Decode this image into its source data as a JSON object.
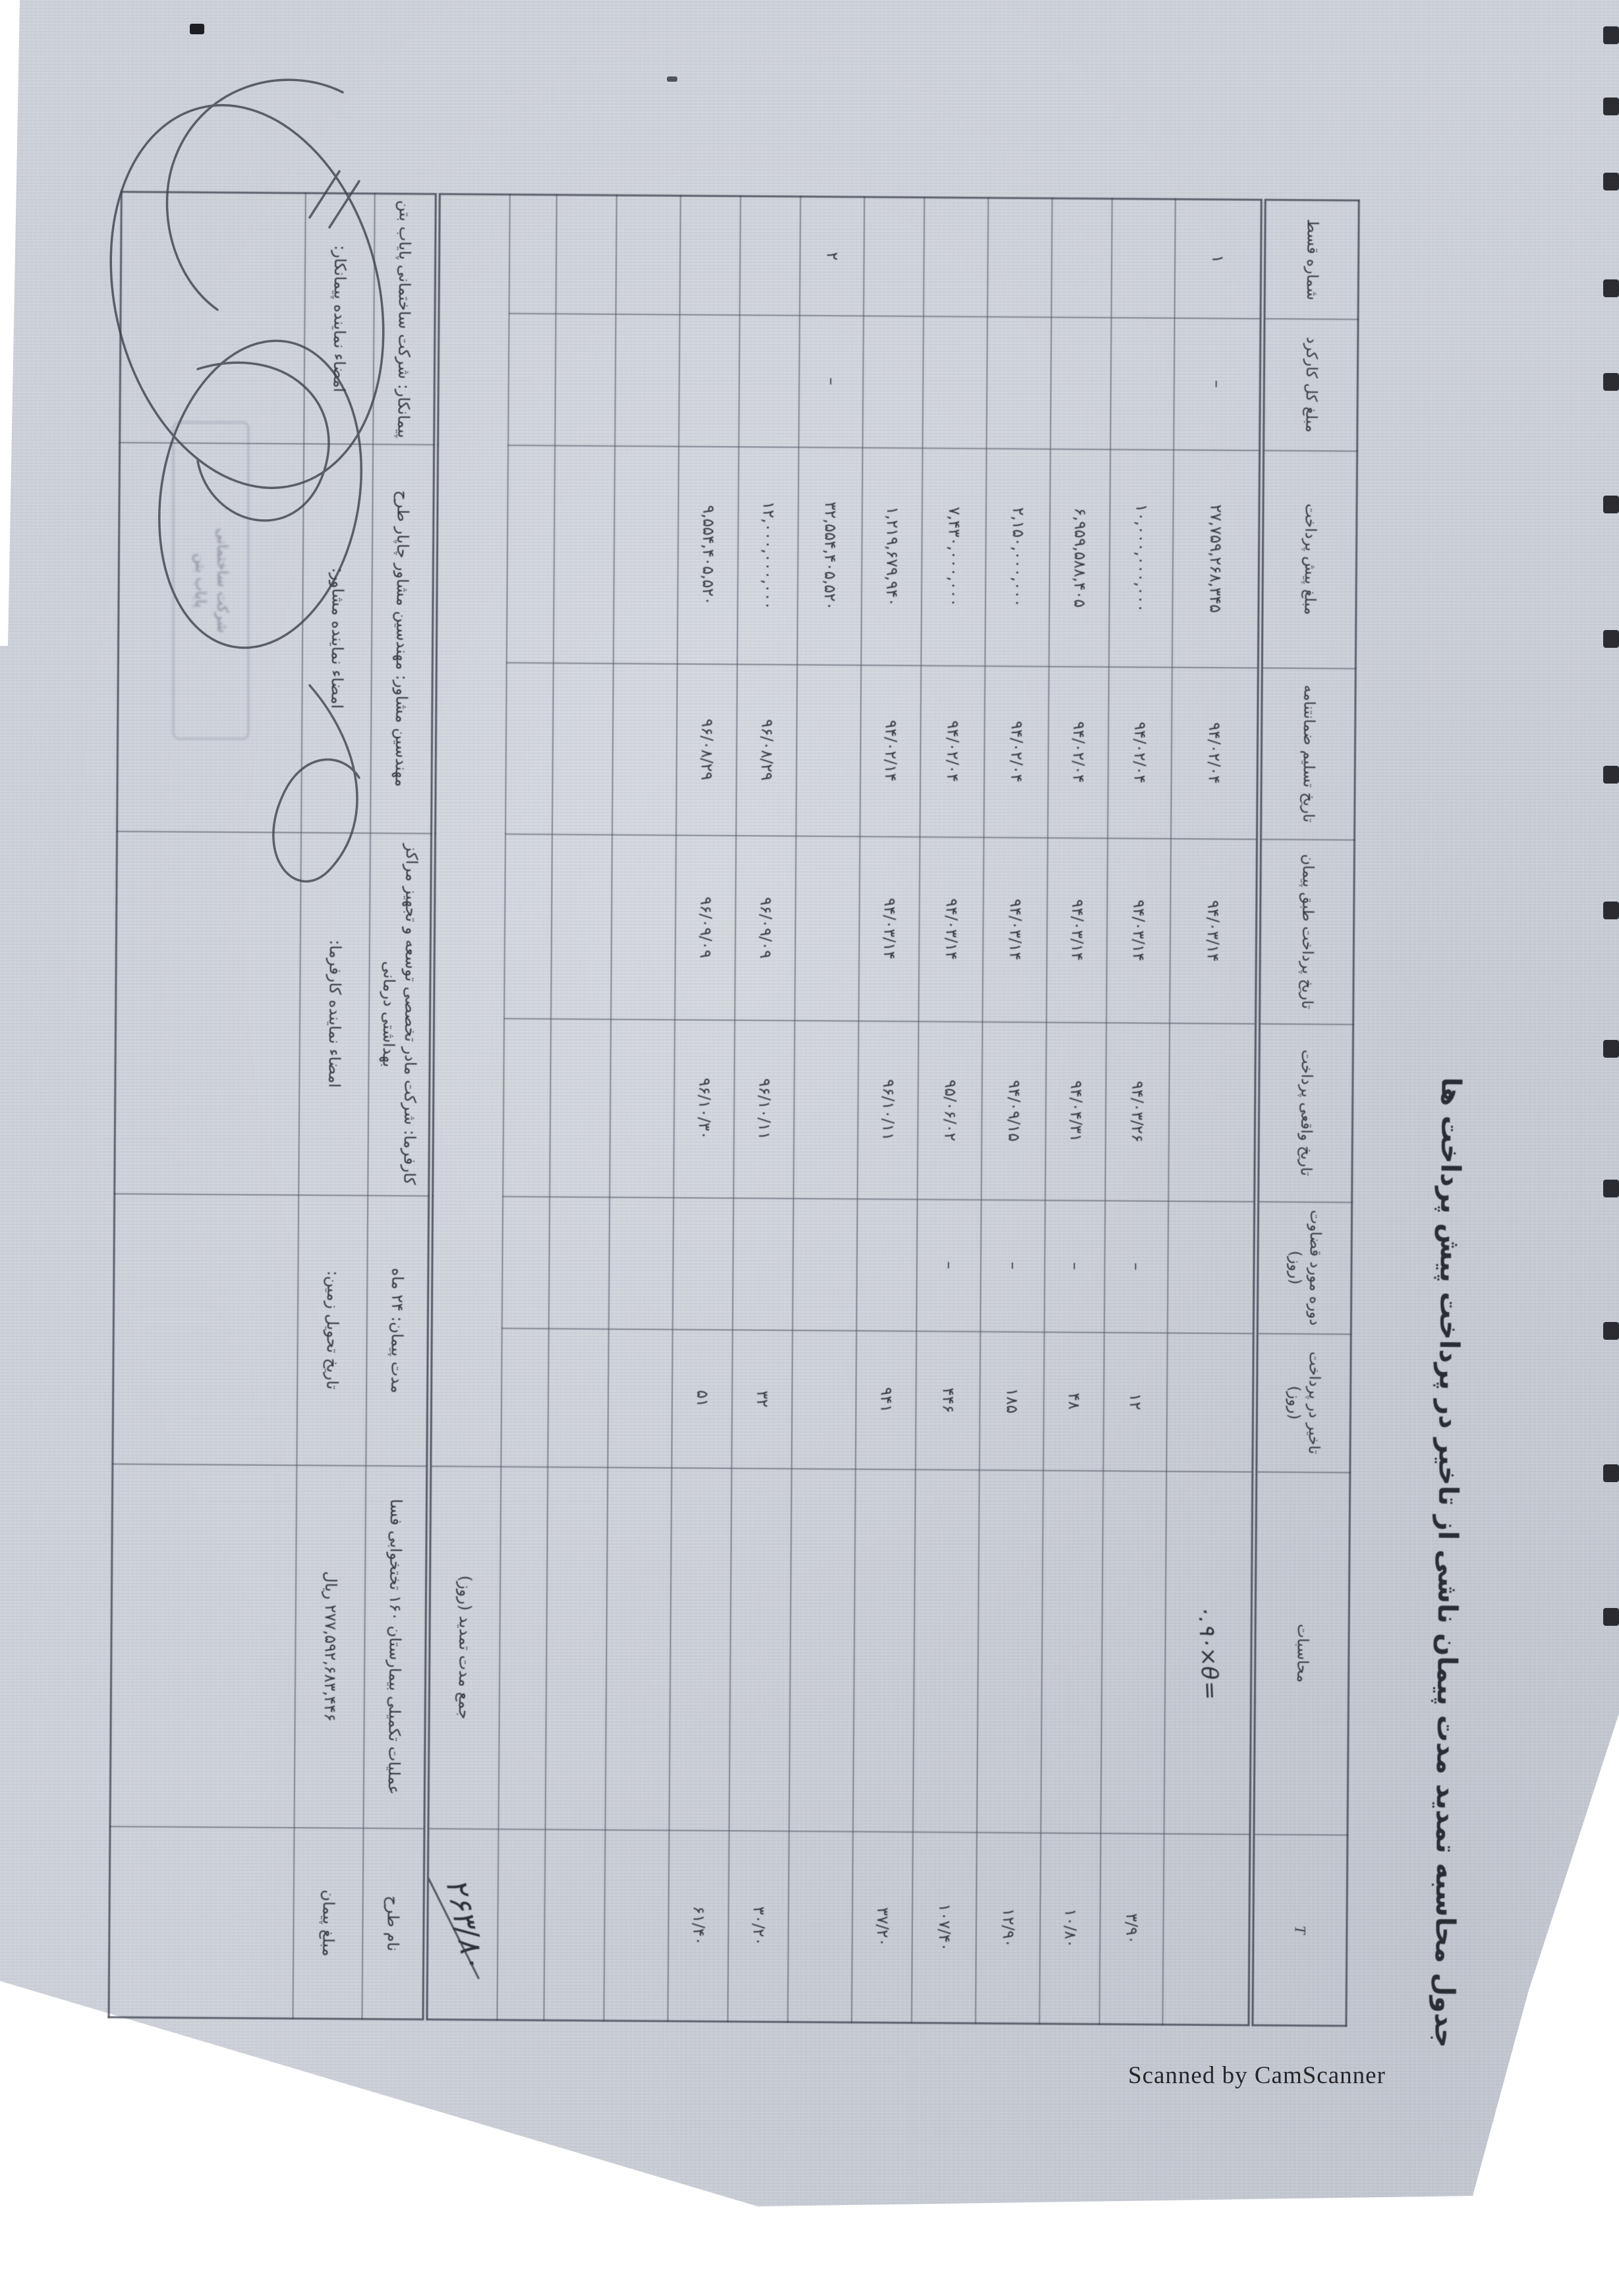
{
  "page": {
    "scanned_by": "Scanned by CamScanner"
  },
  "document": {
    "title": "جدول محاسبه تمدید مدت پیمان ناشی از تاخیر در پرداخت پیش پرداخت ها",
    "table": {
      "headers": [
        "شماره قسط",
        "مبلغ کل کارکرد",
        "مبلغ پیش پرداخت",
        "تاریخ تسلیم ضمانتنامه",
        "تاریخ پرداخت طبق پیمان",
        "تاریخ واقعی پرداخت",
        "دوره مورد قضاوت (روز)",
        "تاخیر در پرداخت (روز)",
        "محاسبات",
        "T"
      ],
      "rows": [
        [
          "۱",
          "–",
          "۲۷,۷۵۹,۲۶۸,۳۴۵",
          "۹۴/۰۲/۰۴",
          "۹۴/۰۳/۱۴",
          "",
          "",
          "",
          "۰.۹۰×θ=",
          ""
        ],
        [
          "",
          "",
          "۱۰,۰۰۰,۰۰۰,۰۰۰",
          "۹۴/۰۲/۰۴",
          "۹۴/۰۳/۱۴",
          "۹۴/۰۳/۲۶",
          "–",
          "۱۲",
          "",
          "۳/۹۰"
        ],
        [
          "",
          "",
          "۶,۹۵۹,۵۸۸,۴۰۵",
          "۹۴/۰۲/۰۴",
          "۹۴/۰۳/۱۴",
          "۹۴/۰۴/۳۱",
          "–",
          "۴۸",
          "",
          "۱۰/۸۰"
        ],
        [
          "",
          "",
          "۲,۱۵۰,۰۰۰,۰۰۰",
          "۹۴/۰۲/۰۴",
          "۹۴/۰۳/۱۴",
          "۹۴/۰۹/۱۵",
          "–",
          "۱۸۵",
          "",
          "۱۲/۹۰"
        ],
        [
          "",
          "",
          "۷,۴۳۰,۰۰۰,۰۰۰",
          "۹۴/۰۲/۰۴",
          "۹۴/۰۳/۱۴",
          "۹۵/۰۶/۰۲",
          "–",
          "۴۴۶",
          "",
          "۱۰۷/۴۰"
        ],
        [
          "",
          "",
          "۱,۲۱۹,۶۷۹,۹۴۰",
          "۹۴/۰۲/۱۴",
          "۹۴/۰۳/۱۴",
          "۹۶/۱۰/۱۱",
          "",
          "۹۴۱",
          "",
          "۳۷/۲۰"
        ],
        [
          "۲",
          "–",
          "۳۲,۵۵۴,۴۰۵,۵۲۰",
          "",
          "",
          "",
          "",
          "",
          "",
          ""
        ],
        [
          "",
          "",
          "۱۲,۰۰۰,۰۰۰,۰۰۰",
          "۹۶/۰۸/۲۹",
          "۹۶/۰۹/۰۹",
          "۹۶/۱۰/۱۱",
          "",
          "۳۲",
          "",
          "۳۰/۲۰"
        ],
        [
          "",
          "",
          "۹,۵۵۴,۴۰۵,۵۲۰",
          "۹۶/۰۸/۲۹",
          "۹۶/۰۹/۰۹",
          "۹۶/۱۰/۳۰",
          "",
          "۵۱",
          "",
          "۶۱/۴۰"
        ],
        [
          "",
          "",
          "",
          "",
          "",
          "",
          "",
          "",
          "",
          ""
        ],
        [
          "",
          "",
          "",
          "",
          "",
          "",
          "",
          "",
          "",
          ""
        ],
        [
          "",
          "",
          "",
          "",
          "",
          "",
          "",
          "",
          "",
          ""
        ]
      ],
      "sum_row": {
        "label": "جمع مدت تمدید (روز)",
        "value": "۲۶۳/۸۰"
      },
      "info_row": [
        "پیمانکار: شرکت ساختمانی پایاب بتن",
        "مهندسین مشاور: مهندسین مشاور چاپار طرح",
        "کارفرما: شرکت مادر تخصصی توسعه و تجهیز مراکز بهداشتی درمانی",
        "مدت پیمان: ۲۴ ماه",
        "عملیات تکمیلی بیمارستان ۱۶۰ تختخوابی فسا",
        "نام طرح"
      ],
      "sign_row": [
        "امضاء نماینده پیمانکار:",
        "امضاء نماینده مشاور:",
        "امضاء نماینده کارفرما:",
        "تاریخ تحویل زمین:",
        "۲۷۷,۵۹۲,۶۸۳,۴۴۶ ریال",
        "مبلغ پیمان"
      ]
    },
    "stamp": {
      "line1": "شرکت ساختمانی",
      "line2": "پایاب بتن"
    }
  }
}
